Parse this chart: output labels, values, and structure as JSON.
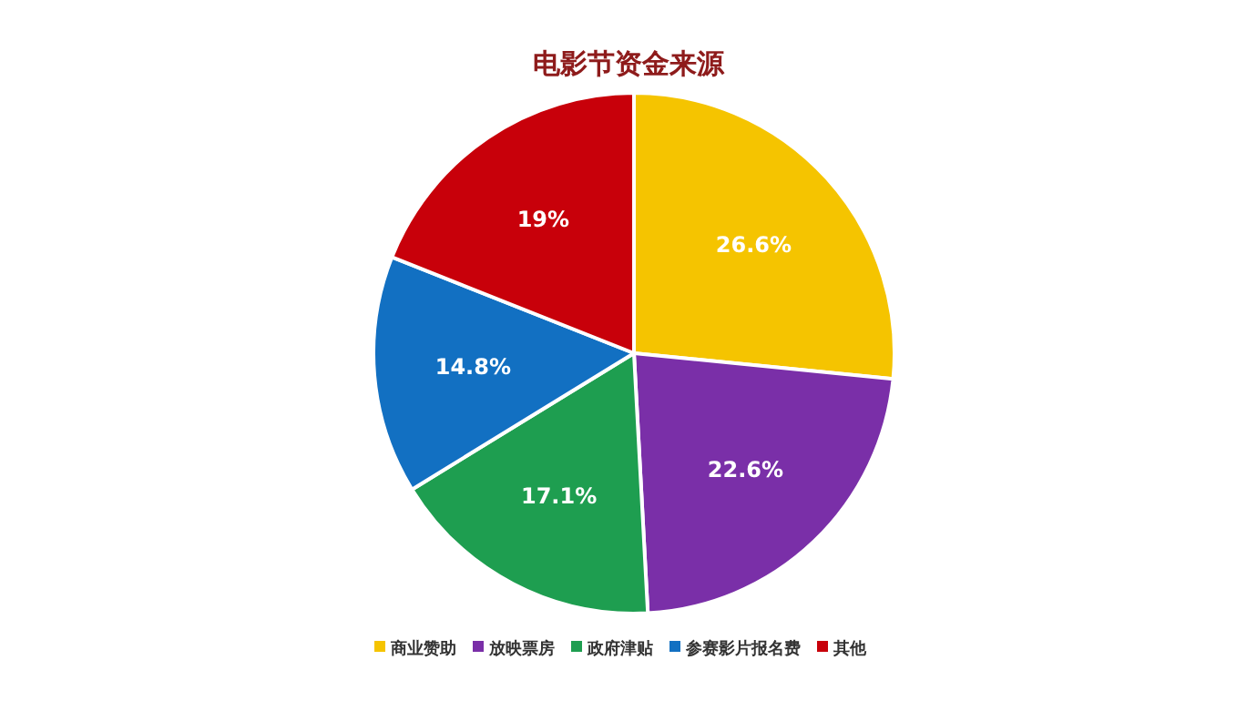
{
  "chart_data": {
    "type": "pie",
    "title": "电影节资金来源",
    "categories": [
      "商业赞助",
      "放映票房",
      "政府津贴",
      "参赛影片报名费",
      "其他"
    ],
    "values": [
      26.6,
      22.6,
      17.1,
      14.8,
      19
    ],
    "colors": [
      "#f5c400",
      "#7a2fa8",
      "#1e9e50",
      "#1270c2",
      "#c8000a"
    ],
    "value_labels": [
      "26.6%",
      "22.6%",
      "17.1%",
      "14.8%",
      "19%"
    ],
    "legend": "bottom"
  }
}
